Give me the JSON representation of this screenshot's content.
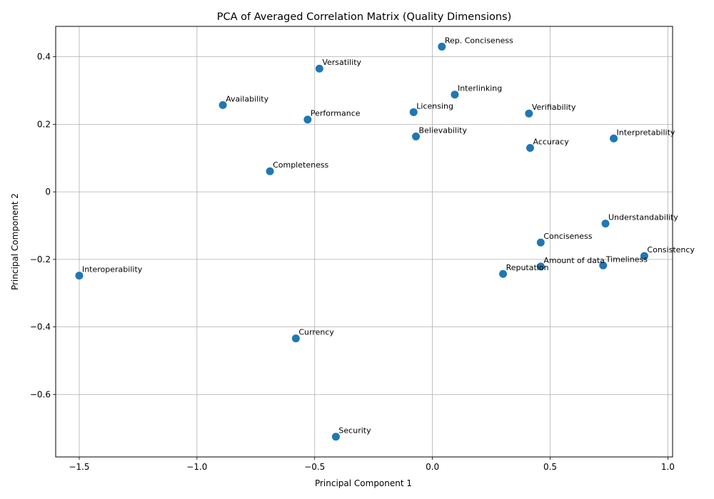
{
  "chart_data": {
    "type": "scatter",
    "title": "PCA of Averaged Correlation Matrix (Quality Dimensions)",
    "xlabel": "Principal Component 1",
    "ylabel": "Principal Component 2",
    "xlim": [
      -1.6,
      1.02
    ],
    "ylim": [
      -0.785,
      0.49
    ],
    "xticks": [
      -1.5,
      -1.0,
      -0.5,
      0.0,
      0.5,
      1.0
    ],
    "xtick_labels": [
      "−1.5",
      "−1.0",
      "−0.5",
      "0.0",
      "0.5",
      "1.0"
    ],
    "yticks": [
      -0.6,
      -0.4,
      -0.2,
      0,
      0.2,
      0.4
    ],
    "ytick_labels": [
      "−0.6",
      "−0.4",
      "−0.2",
      "0",
      "0.2",
      "0.4"
    ],
    "grid": true,
    "marker_color": "#1f77b4",
    "points": [
      {
        "label": "Rep. Conciseness",
        "x": 0.04,
        "y": 0.43
      },
      {
        "label": "Versatility",
        "x": -0.48,
        "y": 0.365
      },
      {
        "label": "Interlinking",
        "x": 0.095,
        "y": 0.288
      },
      {
        "label": "Availability",
        "x": -0.89,
        "y": 0.257
      },
      {
        "label": "Licensing",
        "x": -0.08,
        "y": 0.236
      },
      {
        "label": "Verifiability",
        "x": 0.41,
        "y": 0.232
      },
      {
        "label": "Performance",
        "x": -0.53,
        "y": 0.214
      },
      {
        "label": "Believability",
        "x": -0.07,
        "y": 0.164
      },
      {
        "label": "Interpretability",
        "x": 0.77,
        "y": 0.158
      },
      {
        "label": "Accuracy",
        "x": 0.415,
        "y": 0.13
      },
      {
        "label": "Completeness",
        "x": -0.69,
        "y": 0.061
      },
      {
        "label": "Understandability",
        "x": 0.735,
        "y": -0.094
      },
      {
        "label": "Conciseness",
        "x": 0.46,
        "y": -0.15
      },
      {
        "label": "Consistency",
        "x": 0.9,
        "y": -0.19
      },
      {
        "label": "Amount of data",
        "x": 0.46,
        "y": -0.221
      },
      {
        "label": "Timeliness",
        "x": 0.725,
        "y": -0.218
      },
      {
        "label": "Reputation",
        "x": 0.3,
        "y": -0.243
      },
      {
        "label": "Interoperability",
        "x": -1.5,
        "y": -0.248
      },
      {
        "label": "Currency",
        "x": -0.58,
        "y": -0.434
      },
      {
        "label": "Security",
        "x": -0.41,
        "y": -0.725
      }
    ]
  }
}
